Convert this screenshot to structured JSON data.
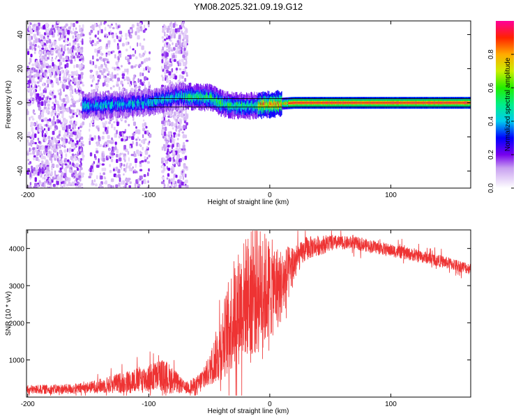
{
  "figure": {
    "title": "YM08.2025.321.09.19.G12"
  },
  "chart_data": [
    {
      "type": "heatmap",
      "title": "YM08.2025.321.09.19.G12",
      "xlabel": "Height of straight line (km)",
      "ylabel": "Frequency (Hz)",
      "xlim": [
        -201,
        166
      ],
      "ylim": [
        -50,
        48
      ],
      "xticks": [
        -200,
        -100,
        0,
        100
      ],
      "xtick_labels": [
        "-200",
        "-100",
        "0",
        "100"
      ],
      "yticks": [
        -40,
        -20,
        0,
        20,
        40
      ],
      "ytick_labels": [
        "-40",
        "-20",
        "0",
        "20",
        "40"
      ],
      "colorbar": {
        "label": "Normalized spectral amplitude",
        "range": [
          0,
          1
        ],
        "ticks": [
          0.0,
          0.2,
          0.4,
          0.6,
          0.8
        ],
        "tick_labels": [
          "0.0",
          "0.2",
          "0.4",
          "0.6",
          "0.8"
        ]
      },
      "features": {
        "noise_bands_km": [
          [
            -201,
            -155
          ],
          [
            -150,
            -100
          ],
          [
            -90,
            -69
          ]
        ],
        "noise_amplitude_range": [
          0.05,
          0.2
        ],
        "ridge_frequency_hz": [
          {
            "x": -155,
            "y": -2
          },
          {
            "x": -100,
            "y": 0
          },
          {
            "x": -75,
            "y": 4
          },
          {
            "x": -50,
            "y": 3
          },
          {
            "x": -38,
            "y": -1
          },
          {
            "x": -20,
            "y": -2
          },
          {
            "x": 0,
            "y": -1
          },
          {
            "x": 20,
            "y": 0
          },
          {
            "x": 166,
            "y": 0
          }
        ],
        "horizontal_lines_hz": [
          2.5,
          -2.5
        ],
        "peak_amplitude": 1.0
      }
    },
    {
      "type": "line",
      "xlabel": "Height of straight line (km)",
      "ylabel": "SNR (10 * v/v)",
      "xlim": [
        -201,
        166
      ],
      "ylim": [
        0,
        4500
      ],
      "xticks": [
        -200,
        -100,
        0,
        100
      ],
      "xtick_labels": [
        "-200",
        "-100",
        "0",
        "100"
      ],
      "yticks": [
        1000,
        2000,
        3000,
        4000
      ],
      "ytick_labels": [
        "1000",
        "2000",
        "3000",
        "4000"
      ],
      "series": [
        {
          "name": "SNR",
          "color": "#ee3333",
          "envelope": [
            {
              "x": -201,
              "y": 200
            },
            {
              "x": -160,
              "y": 220
            },
            {
              "x": -140,
              "y": 300
            },
            {
              "x": -120,
              "y": 400
            },
            {
              "x": -100,
              "y": 500
            },
            {
              "x": -90,
              "y": 600
            },
            {
              "x": -80,
              "y": 450
            },
            {
              "x": -70,
              "y": 250
            },
            {
              "x": -60,
              "y": 300
            },
            {
              "x": -50,
              "y": 700
            },
            {
              "x": -40,
              "y": 1400
            },
            {
              "x": -30,
              "y": 2200
            },
            {
              "x": -20,
              "y": 2700
            },
            {
              "x": -10,
              "y": 2900
            },
            {
              "x": 0,
              "y": 2900
            },
            {
              "x": 10,
              "y": 3000
            },
            {
              "x": 20,
              "y": 3600
            },
            {
              "x": 30,
              "y": 4000
            },
            {
              "x": 50,
              "y": 4150
            },
            {
              "x": 70,
              "y": 4150
            },
            {
              "x": 100,
              "y": 3950
            },
            {
              "x": 130,
              "y": 3750
            },
            {
              "x": 166,
              "y": 3450
            }
          ],
          "noise_amplitude": [
            {
              "x": -201,
              "y": 120
            },
            {
              "x": -150,
              "y": 150
            },
            {
              "x": -110,
              "y": 350
            },
            {
              "x": -85,
              "y": 450
            },
            {
              "x": -70,
              "y": 150
            },
            {
              "x": -50,
              "y": 400
            },
            {
              "x": -30,
              "y": 1500
            },
            {
              "x": -10,
              "y": 1800
            },
            {
              "x": 5,
              "y": 1200
            },
            {
              "x": 25,
              "y": 350
            },
            {
              "x": 60,
              "y": 180
            },
            {
              "x": 166,
              "y": 160
            }
          ]
        }
      ]
    }
  ]
}
